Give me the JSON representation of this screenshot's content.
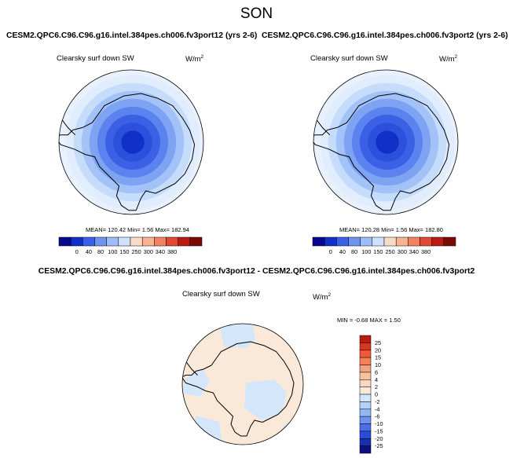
{
  "page_title": "SON",
  "panels": {
    "left": {
      "title": "CESM2.QPC6.C96.C96.g16.intel.384pes.ch006.fv3port12 (yrs 2-6)",
      "variable": "Clearsky surf down SW",
      "units_base": "W/m",
      "units_exp": "2",
      "stats": "MEAN= 120.42  Min=   1.56  Max= 182.94"
    },
    "right": {
      "title": "CESM2.QPC6.C96.C96.g16.intel.384pes.ch006.fv3port2 (yrs 2-6)",
      "variable": "Clearsky surf down SW",
      "units_base": "W/m",
      "units_exp": "2",
      "stats": "MEAN= 120.28  Min=   1.56  Max= 182.80"
    },
    "diff": {
      "title": "CESM2.QPC6.C96.C96.g16.intel.384pes.ch006.fv3port12 - CESM2.QPC6.C96.C96.g16.intel.384pes.ch006.fv3port2",
      "variable": "Clearsky surf down SW",
      "units_base": "W/m",
      "units_exp": "2",
      "stats": "MIN =  -0.68 MAX =   1.50"
    }
  },
  "chart_data": [
    {
      "type": "heatmap",
      "title": "CESM2.QPC6.C96.C96.g16.intel.384pes.ch006.fv3port12 (yrs 2-6)",
      "variable": "Clearsky surf down SW",
      "projection": "south polar stereographic",
      "colorbar_ticks": [
        "0",
        "40",
        "80",
        "100",
        "150",
        "250",
        "300",
        "340",
        "380"
      ],
      "colorbar_colors": [
        "#08088a",
        "#1030c8",
        "#3a60e6",
        "#6f93f0",
        "#9ebcf7",
        "#cfe2fb",
        "#f9dcc8",
        "#f7b392",
        "#f08263",
        "#e04a32",
        "#b81b14",
        "#7a0a06"
      ],
      "ring_levels_from_pole": [
        "#1030c8",
        "#2a50dc",
        "#3a60e6",
        "#5b82ee",
        "#7ea3f3",
        "#a3c2f8",
        "#c6dcfb",
        "#e1edfd"
      ],
      "mean": 120.42,
      "min": 1.56,
      "max": 182.94
    },
    {
      "type": "heatmap",
      "title": "CESM2.QPC6.C96.C96.g16.intel.384pes.ch006.fv3port2 (yrs 2-6)",
      "variable": "Clearsky surf down SW",
      "projection": "south polar stereographic",
      "colorbar_ticks": [
        "0",
        "40",
        "80",
        "100",
        "150",
        "250",
        "300",
        "340",
        "380"
      ],
      "colorbar_colors": [
        "#08088a",
        "#1030c8",
        "#3a60e6",
        "#6f93f0",
        "#9ebcf7",
        "#cfe2fb",
        "#f9dcc8",
        "#f7b392",
        "#f08263",
        "#e04a32",
        "#b81b14",
        "#7a0a06"
      ],
      "ring_levels_from_pole": [
        "#1030c8",
        "#2a50dc",
        "#3a60e6",
        "#5b82ee",
        "#7ea3f3",
        "#a3c2f8",
        "#c6dcfb",
        "#e1edfd"
      ],
      "mean": 120.28,
      "min": 1.56,
      "max": 182.8
    },
    {
      "type": "heatmap",
      "title": "CESM2.QPC6.C96.C96.g16.intel.384pes.ch006.fv3port12 - CESM2.QPC6.C96.C96.g16.intel.384pes.ch006.fv3port2",
      "variable": "Clearsky surf down SW",
      "projection": "south polar stereographic",
      "colorbar_ticks": [
        "25",
        "20",
        "15",
        "10",
        "6",
        "4",
        "2",
        "0",
        "-2",
        "-4",
        "-6",
        "-10",
        "-15",
        "-20",
        "-25"
      ],
      "colorbar_colors_top_to_bottom": [
        "#b81b14",
        "#d9351f",
        "#ec5a38",
        "#f4815a",
        "#f6a27c",
        "#f8c0a0",
        "#f9d8c0",
        "#fae8d8",
        "#d4e6fa",
        "#b6d1f8",
        "#93b6f4",
        "#6f93f0",
        "#4a6eea",
        "#2a4cd8",
        "#1a2fb0",
        "#0c0f80"
      ],
      "min": -0.68,
      "max": 1.5
    }
  ]
}
